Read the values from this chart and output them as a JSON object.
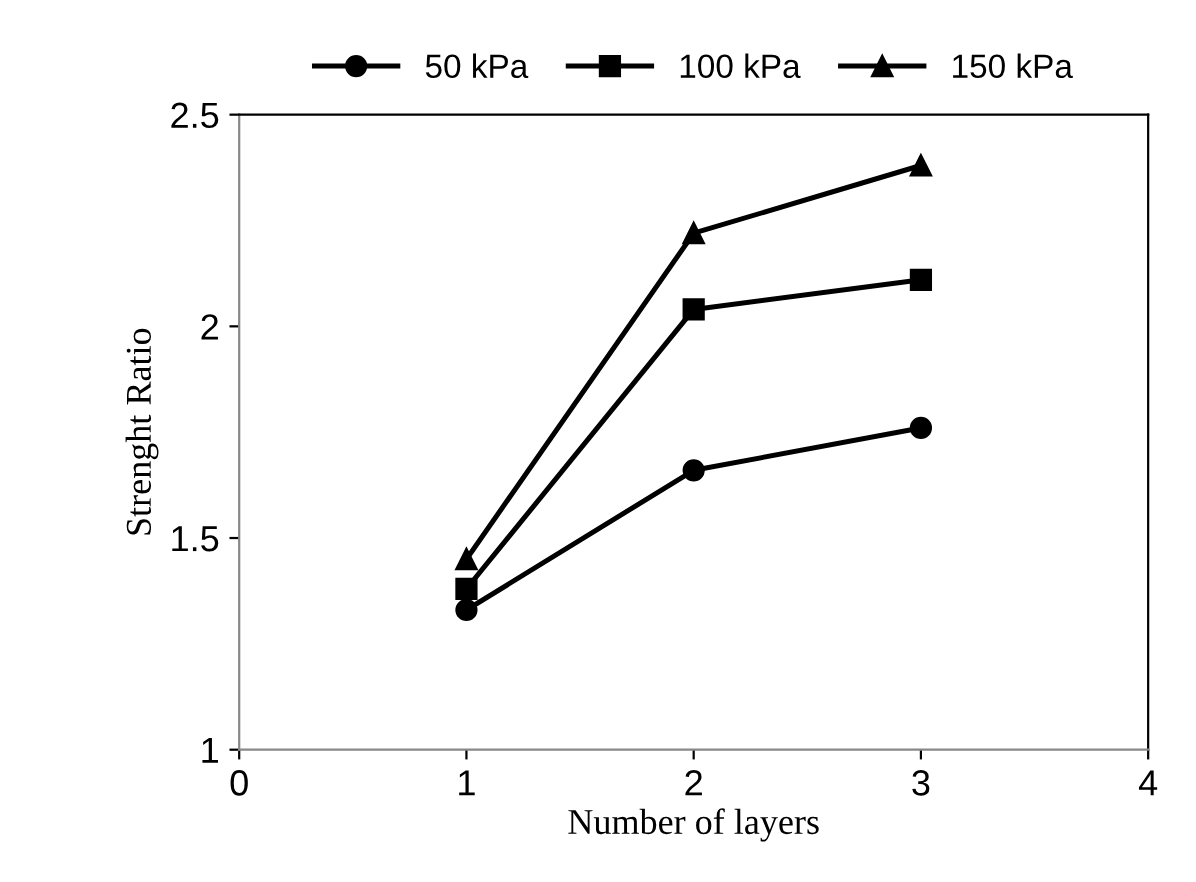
{
  "chart_data": {
    "type": "line",
    "xlabel": "Number of layers",
    "ylabel": "Strenght Ratio",
    "x": [
      1,
      2,
      3
    ],
    "series": [
      {
        "name": "50 kPa",
        "color": "#000000",
        "marker": "circle",
        "values": [
          1.33,
          1.66,
          1.76
        ]
      },
      {
        "name": "100 kPa",
        "color": "#000000",
        "marker": "square",
        "values": [
          1.38,
          2.04,
          2.11
        ]
      },
      {
        "name": "150 kPa",
        "color": "#000000",
        "marker": "triangle",
        "values": [
          1.45,
          2.22,
          2.38
        ]
      }
    ],
    "xlim": [
      0,
      4
    ],
    "xticks": [
      0,
      1,
      2,
      3,
      4
    ],
    "ylim": [
      1,
      2.5
    ],
    "yticks": [
      1,
      1.5,
      2,
      2.5
    ],
    "grid": false,
    "legend": "top",
    "line_style": "solid"
  }
}
